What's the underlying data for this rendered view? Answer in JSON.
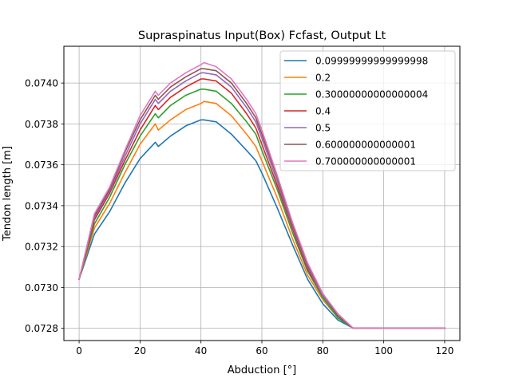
{
  "chart_data": {
    "type": "line",
    "title": "Supraspinatus Input(Box) Fcfast, Output Lt",
    "xlabel": "Abduction [°]",
    "ylabel": "Tendon length [m]",
    "xlim": [
      -5,
      125
    ],
    "ylim": [
      0.07274,
      0.07418
    ],
    "xticks": [
      0,
      20,
      40,
      60,
      80,
      100,
      120
    ],
    "yticks": [
      0.0728,
      0.073,
      0.0732,
      0.0734,
      0.0736,
      0.0738,
      0.074
    ],
    "xtick_labels": [
      "0",
      "20",
      "40",
      "60",
      "80",
      "100",
      "120"
    ],
    "ytick_labels": [
      "0.0728",
      "0.0730",
      "0.0732",
      "0.0734",
      "0.0736",
      "0.0738",
      "0.0740"
    ],
    "grid": true,
    "legend_position": "upper right",
    "x": [
      0,
      5,
      10,
      15,
      20,
      25,
      26,
      30,
      35,
      40,
      41,
      45,
      50,
      55,
      58,
      60,
      65,
      70,
      75,
      80,
      85,
      90,
      93,
      95,
      100,
      105,
      110,
      115,
      120
    ],
    "series": [
      {
        "name": "0.09999999999999998",
        "color": "#1f77b4",
        "values": [
          0.07304,
          0.07326,
          0.07337,
          0.07351,
          0.07363,
          0.07371,
          0.07369,
          0.07374,
          0.07379,
          0.07382,
          0.07382,
          0.07381,
          0.07375,
          0.07367,
          0.07362,
          0.07356,
          0.07339,
          0.07321,
          0.07304,
          0.07292,
          0.07284,
          0.0728,
          0.0728,
          0.0728,
          0.0728,
          0.0728,
          0.0728,
          0.0728,
          0.0728
        ]
      },
      {
        "name": "0.2",
        "color": "#ff7f0e",
        "values": [
          0.07304,
          0.07329,
          0.07341,
          0.07356,
          0.0737,
          0.0738,
          0.07377,
          0.07382,
          0.07387,
          0.0739,
          0.07391,
          0.0739,
          0.07384,
          0.07375,
          0.07369,
          0.07362,
          0.07344,
          0.07324,
          0.07306,
          0.07294,
          0.07285,
          0.0728,
          0.0728,
          0.0728,
          0.0728,
          0.0728,
          0.0728,
          0.0728,
          0.0728
        ]
      },
      {
        "name": "0.30000000000000004",
        "color": "#2ca02c",
        "values": [
          0.07304,
          0.07331,
          0.07344,
          0.0736,
          0.07374,
          0.07385,
          0.07383,
          0.07389,
          0.07394,
          0.07397,
          0.07397,
          0.07396,
          0.0739,
          0.07381,
          0.07375,
          0.07367,
          0.07348,
          0.07327,
          0.07308,
          0.07295,
          0.07285,
          0.0728,
          0.0728,
          0.0728,
          0.0728,
          0.0728,
          0.0728,
          0.0728,
          0.0728
        ]
      },
      {
        "name": "0.4",
        "color": "#d62728",
        "values": [
          0.07304,
          0.07333,
          0.07346,
          0.07362,
          0.07377,
          0.07389,
          0.07387,
          0.07393,
          0.07398,
          0.07402,
          0.07402,
          0.07401,
          0.07395,
          0.07385,
          0.07378,
          0.0737,
          0.0735,
          0.07329,
          0.07309,
          0.07296,
          0.07286,
          0.0728,
          0.0728,
          0.0728,
          0.0728,
          0.0728,
          0.0728,
          0.0728,
          0.0728
        ]
      },
      {
        "name": "0.5",
        "color": "#9467bd",
        "values": [
          0.07304,
          0.07334,
          0.07347,
          0.07364,
          0.0738,
          0.07392,
          0.0739,
          0.07396,
          0.07401,
          0.07405,
          0.07405,
          0.07404,
          0.07398,
          0.07388,
          0.07381,
          0.07373,
          0.07352,
          0.0733,
          0.0731,
          0.07296,
          0.07286,
          0.0728,
          0.0728,
          0.0728,
          0.0728,
          0.0728,
          0.0728,
          0.0728,
          0.0728
        ]
      },
      {
        "name": "0.600000000000001",
        "color": "#8c564b",
        "values": [
          0.07304,
          0.07335,
          0.07348,
          0.07366,
          0.07382,
          0.07394,
          0.07392,
          0.07398,
          0.07403,
          0.07407,
          0.07407,
          0.07406,
          0.074,
          0.0739,
          0.07383,
          0.07375,
          0.07354,
          0.07331,
          0.07311,
          0.07297,
          0.07286,
          0.0728,
          0.0728,
          0.0728,
          0.0728,
          0.0728,
          0.0728,
          0.0728,
          0.0728
        ]
      },
      {
        "name": "0.700000000000001",
        "color": "#e377c2",
        "values": [
          0.07304,
          0.07336,
          0.07349,
          0.07367,
          0.07384,
          0.07396,
          0.07394,
          0.074,
          0.07405,
          0.07409,
          0.0741,
          0.07408,
          0.07402,
          0.07392,
          0.07385,
          0.07377,
          0.07355,
          0.07332,
          0.07312,
          0.07297,
          0.07287,
          0.0728,
          0.0728,
          0.0728,
          0.0728,
          0.0728,
          0.0728,
          0.0728,
          0.0728
        ]
      }
    ]
  }
}
